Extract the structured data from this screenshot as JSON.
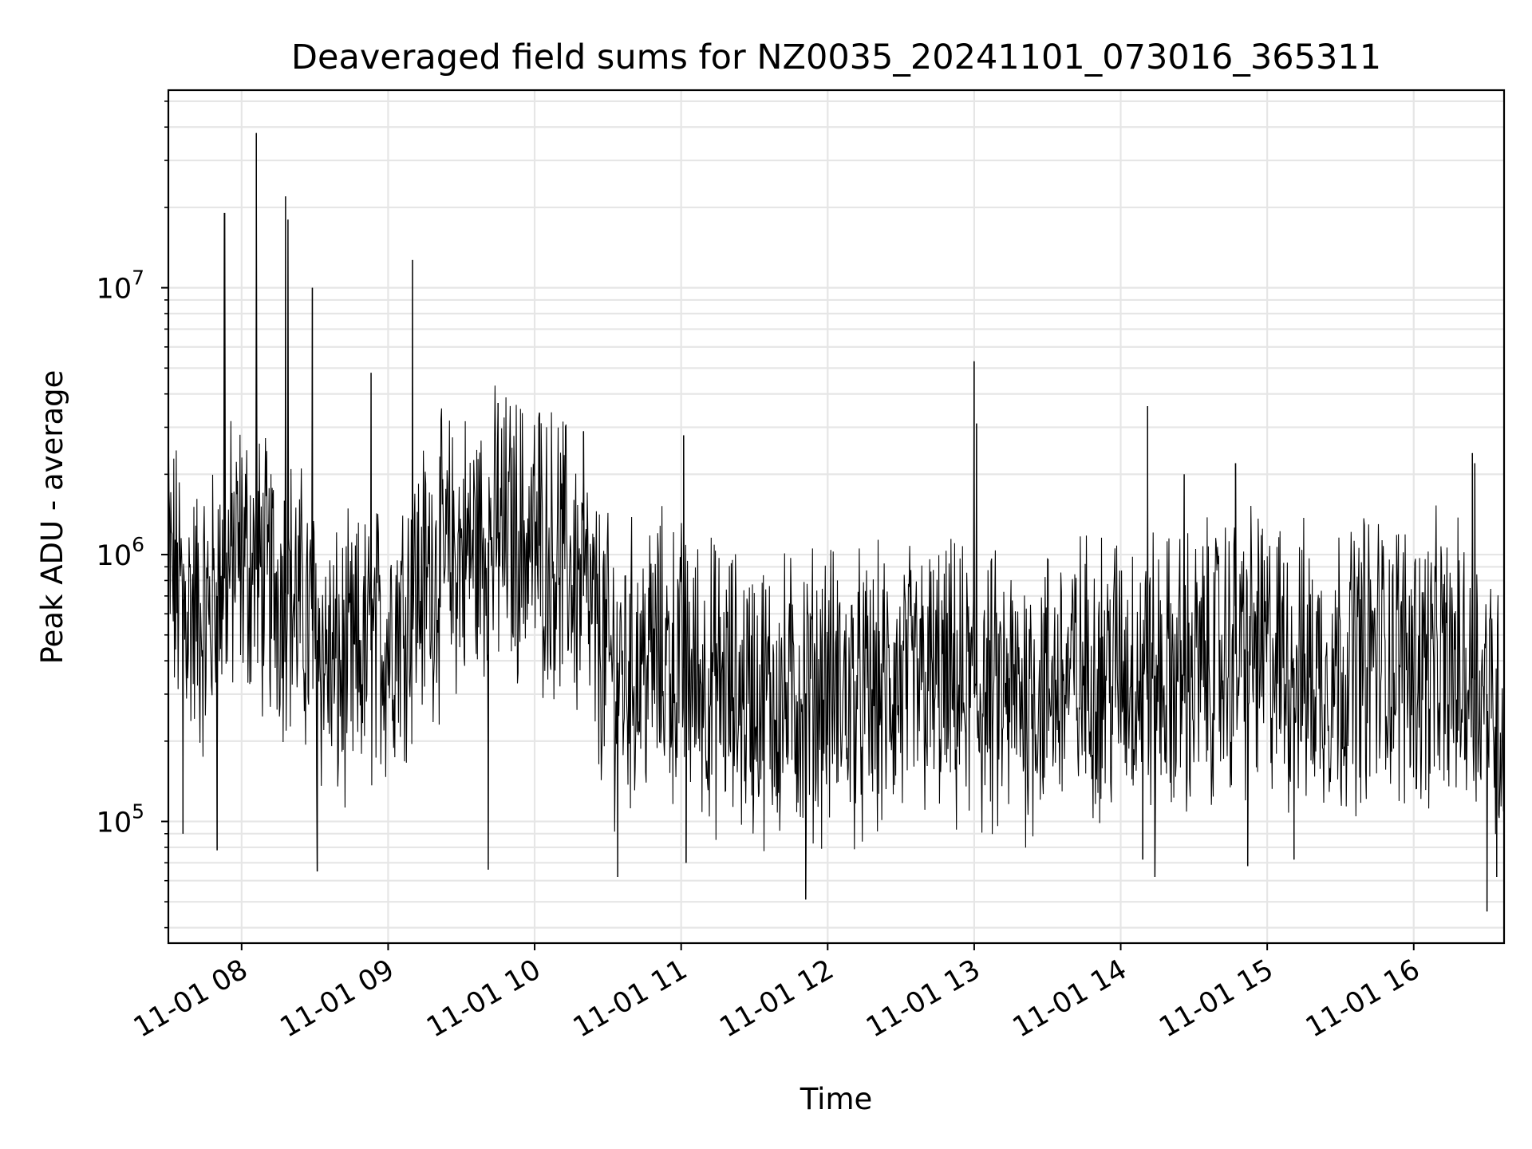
{
  "chart_data": {
    "type": "line",
    "title": "Deaveraged field sums for NZ0035_20241101_073016_365311",
    "xlabel": "Time",
    "ylabel": "Peak ADU - average",
    "yscale": "log",
    "grid": true,
    "xlim": [
      "2024-11-01 07:30",
      "2024-11-01 16:37"
    ],
    "ylim": [
      35000,
      55000000
    ],
    "x_ticks": [
      {
        "value": "2024-11-01 08:00",
        "label": "11-01 08"
      },
      {
        "value": "2024-11-01 09:00",
        "label": "11-01 09"
      },
      {
        "value": "2024-11-01 10:00",
        "label": "11-01 10"
      },
      {
        "value": "2024-11-01 11:00",
        "label": "11-01 11"
      },
      {
        "value": "2024-11-01 12:00",
        "label": "11-01 12"
      },
      {
        "value": "2024-11-01 13:00",
        "label": "11-01 13"
      },
      {
        "value": "2024-11-01 14:00",
        "label": "11-01 14"
      },
      {
        "value": "2024-11-01 15:00",
        "label": "11-01 15"
      },
      {
        "value": "2024-11-01 16:00",
        "label": "11-01 16"
      }
    ],
    "y_ticks": [
      {
        "value": 100000,
        "base": "10",
        "exp": "5"
      },
      {
        "value": 1000000,
        "base": "10",
        "exp": "6"
      },
      {
        "value": 10000000,
        "base": "10",
        "exp": "7"
      }
    ],
    "series": [
      {
        "color": "#000000",
        "x": [
          "07:30",
          "07:35",
          "07:40",
          "07:45",
          "07:50",
          "07:55",
          "08:00",
          "08:05",
          "08:10",
          "08:15",
          "08:20",
          "08:25",
          "08:30",
          "08:35",
          "08:40",
          "08:45",
          "08:50",
          "08:55",
          "09:00",
          "09:05",
          "09:10",
          "09:15",
          "09:20",
          "09:25",
          "09:30",
          "09:35",
          "09:40",
          "09:45",
          "09:50",
          "09:55",
          "10:00",
          "10:05",
          "10:10",
          "10:15",
          "10:20",
          "10:25",
          "10:30",
          "10:35",
          "10:40",
          "10:45",
          "10:50",
          "10:55",
          "11:00",
          "11:05",
          "11:10",
          "11:15",
          "11:20",
          "11:25",
          "11:30",
          "11:35",
          "11:40",
          "11:45",
          "11:50",
          "11:55",
          "12:00",
          "12:05",
          "12:10",
          "12:15",
          "12:20",
          "12:25",
          "12:30",
          "12:35",
          "12:40",
          "12:45",
          "12:50",
          "12:55",
          "13:00",
          "13:05",
          "13:10",
          "13:15",
          "13:20",
          "13:25",
          "13:30",
          "13:35",
          "13:40",
          "13:45",
          "13:50",
          "13:55",
          "14:00",
          "14:05",
          "14:10",
          "14:15",
          "14:20",
          "14:25",
          "14:30",
          "14:35",
          "14:40",
          "14:45",
          "14:50",
          "14:55",
          "15:00",
          "15:05",
          "15:10",
          "15:15",
          "15:20",
          "15:25",
          "15:30",
          "15:35",
          "15:40",
          "15:45",
          "15:50",
          "15:55",
          "16:00",
          "16:05",
          "16:10",
          "16:15",
          "16:20",
          "16:25",
          "16:30",
          "16:35"
        ],
        "median": [
          900000,
          700000,
          600000,
          550000,
          700000,
          900000,
          1000000,
          900000,
          800000,
          750000,
          700000,
          600000,
          500000,
          400000,
          350000,
          380000,
          420000,
          450000,
          500000,
          600000,
          700000,
          800000,
          900000,
          950000,
          1000000,
          1050000,
          1100000,
          1150000,
          1200000,
          1150000,
          1100000,
          1050000,
          1000000,
          900000,
          700000,
          500000,
          400000,
          360000,
          380000,
          400000,
          420000,
          400000,
          380000,
          360000,
          340000,
          320000,
          310000,
          300000,
          300000,
          290000,
          280000,
          290000,
          300000,
          310000,
          320000,
          300000,
          290000,
          280000,
          290000,
          300000,
          310000,
          320000,
          330000,
          320000,
          310000,
          300000,
          300000,
          290000,
          280000,
          290000,
          300000,
          310000,
          320000,
          330000,
          340000,
          350000,
          360000,
          370000,
          380000,
          370000,
          360000,
          350000,
          340000,
          350000,
          360000,
          380000,
          400000,
          420000,
          430000,
          440000,
          420000,
          400000,
          380000,
          360000,
          350000,
          360000,
          380000,
          400000,
          420000,
          430000,
          420000,
          410000,
          400000,
          390000,
          380000,
          370000,
          360000,
          340000,
          300000,
          250000
        ],
        "peaks": [
          {
            "x": "07:30",
            "y": 3500000
          },
          {
            "x": "07:53",
            "y": 19000000
          },
          {
            "x": "08:06",
            "y": 38000000
          },
          {
            "x": "08:18",
            "y": 22000000
          },
          {
            "x": "08:19",
            "y": 18000000
          },
          {
            "x": "08:29",
            "y": 10000000
          },
          {
            "x": "08:53",
            "y": 4800000
          },
          {
            "x": "09:10",
            "y": 12700000
          },
          {
            "x": "09:45",
            "y": 3700000
          },
          {
            "x": "10:02",
            "y": 3400000
          },
          {
            "x": "10:20",
            "y": 2900000
          },
          {
            "x": "11:01",
            "y": 2800000
          },
          {
            "x": "13:00",
            "y": 5300000
          },
          {
            "x": "13:01",
            "y": 3100000
          },
          {
            "x": "14:11",
            "y": 3600000
          },
          {
            "x": "14:26",
            "y": 2000000
          },
          {
            "x": "14:47",
            "y": 2200000
          },
          {
            "x": "16:24",
            "y": 2400000
          },
          {
            "x": "16:25",
            "y": 2200000
          }
        ],
        "troughs": [
          {
            "x": "07:36",
            "y": 90000
          },
          {
            "x": "07:50",
            "y": 78000
          },
          {
            "x": "08:31",
            "y": 65000
          },
          {
            "x": "09:41",
            "y": 66000
          },
          {
            "x": "10:34",
            "y": 62000
          },
          {
            "x": "11:02",
            "y": 70000
          },
          {
            "x": "11:51",
            "y": 51000
          },
          {
            "x": "14:09",
            "y": 72000
          },
          {
            "x": "14:14",
            "y": 62000
          },
          {
            "x": "14:52",
            "y": 68000
          },
          {
            "x": "15:11",
            "y": 72000
          },
          {
            "x": "16:30",
            "y": 46000
          },
          {
            "x": "16:34",
            "y": 62000
          }
        ]
      }
    ]
  }
}
